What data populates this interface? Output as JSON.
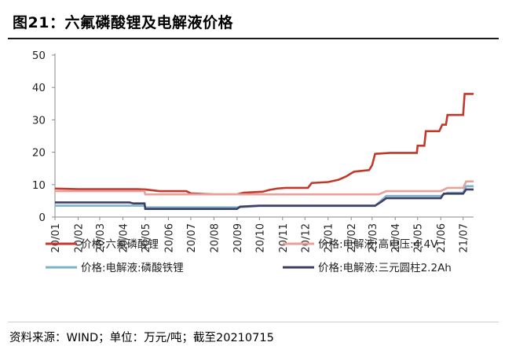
{
  "figure": {
    "title": "图21：六氟磷酸锂及电解液价格",
    "source": "资料来源：WIND；单位：万元/吨；截至20210715"
  },
  "chart_data": {
    "type": "line",
    "title": "",
    "xlabel": "",
    "ylabel": "",
    "ylim": [
      0,
      50
    ],
    "yticks": [
      0,
      10,
      20,
      30,
      40,
      50
    ],
    "xlim": [
      "2020-01-01",
      "2021-07-15"
    ],
    "xticks": [
      "20/01",
      "20/02",
      "20/03",
      "20/04",
      "20/05",
      "20/06",
      "20/07",
      "20/08",
      "20/09",
      "20/10",
      "20/11",
      "20/12",
      "21/01",
      "21/02",
      "21/03",
      "21/04",
      "21/05",
      "21/06",
      "21/07"
    ],
    "grid": "none",
    "legend_position": "bottom",
    "series": [
      {
        "name": "价格:六氟磷酸锂",
        "color": "#c0392b",
        "points": [
          [
            "2020-01-01",
            8.8
          ],
          [
            "2020-02-01",
            8.6
          ],
          [
            "2020-04-20",
            8.6
          ],
          [
            "2020-05-01",
            8.5
          ],
          [
            "2020-05-20",
            8.0
          ],
          [
            "2020-06-25",
            8.0
          ],
          [
            "2020-07-01",
            7.3
          ],
          [
            "2020-08-01",
            7.0
          ],
          [
            "2020-09-01",
            7.0
          ],
          [
            "2020-09-10",
            7.5
          ],
          [
            "2020-10-05",
            7.8
          ],
          [
            "2020-10-15",
            8.4
          ],
          [
            "2020-10-25",
            8.8
          ],
          [
            "2020-11-05",
            9.0
          ],
          [
            "2020-12-05",
            9.0
          ],
          [
            "2020-12-10",
            10.5
          ],
          [
            "2021-01-01",
            10.8
          ],
          [
            "2021-01-15",
            11.5
          ],
          [
            "2021-01-25",
            12.5
          ],
          [
            "2021-02-01",
            13.5
          ],
          [
            "2021-02-05",
            14.0
          ],
          [
            "2021-02-25",
            14.5
          ],
          [
            "2021-03-01",
            16.0
          ],
          [
            "2021-03-05",
            19.5
          ],
          [
            "2021-03-25",
            19.8
          ],
          [
            "2021-04-30",
            19.8
          ],
          [
            "2021-05-01",
            22.0
          ],
          [
            "2021-05-10",
            22.0
          ],
          [
            "2021-05-12",
            26.5
          ],
          [
            "2021-05-30",
            26.5
          ],
          [
            "2021-06-03",
            28.5
          ],
          [
            "2021-06-08",
            28.5
          ],
          [
            "2021-06-10",
            31.5
          ],
          [
            "2021-07-01",
            31.5
          ],
          [
            "2021-07-03",
            38.0
          ],
          [
            "2021-07-15",
            38.0
          ]
        ]
      },
      {
        "name": "价格:电解液:高电压:4.4V",
        "color": "#e8a09a",
        "points": [
          [
            "2020-01-01",
            8.0
          ],
          [
            "2020-04-30",
            8.0
          ],
          [
            "2020-05-01",
            7.0
          ],
          [
            "2020-09-01",
            7.0
          ],
          [
            "2021-03-10",
            7.0
          ],
          [
            "2021-03-20",
            8.0
          ],
          [
            "2021-06-01",
            8.0
          ],
          [
            "2021-06-10",
            9.0
          ],
          [
            "2021-07-01",
            9.0
          ],
          [
            "2021-07-05",
            11.0
          ],
          [
            "2021-07-15",
            11.0
          ]
        ]
      },
      {
        "name": "价格:电解液:磷酸铁锂",
        "color": "#7fb3c8",
        "points": [
          [
            "2020-01-01",
            3.5
          ],
          [
            "2020-04-30",
            3.5
          ],
          [
            "2020-05-01",
            3.0
          ],
          [
            "2020-09-01",
            3.0
          ],
          [
            "2020-10-01",
            3.4
          ],
          [
            "2021-03-05",
            3.4
          ],
          [
            "2021-03-15",
            5.5
          ],
          [
            "2021-03-20",
            6.5
          ],
          [
            "2021-06-01",
            6.5
          ],
          [
            "2021-06-10",
            7.5
          ],
          [
            "2021-07-01",
            7.5
          ],
          [
            "2021-07-05",
            9.5
          ],
          [
            "2021-07-15",
            9.5
          ]
        ]
      },
      {
        "name": "价格:电解液:三元圆柱2.2Ah",
        "color": "#3f3f66",
        "points": [
          [
            "2020-01-01",
            4.5
          ],
          [
            "2020-04-10",
            4.5
          ],
          [
            "2020-04-15",
            4.2
          ],
          [
            "2020-04-30",
            4.2
          ],
          [
            "2020-05-01",
            2.5
          ],
          [
            "2020-09-01",
            2.5
          ],
          [
            "2020-09-05",
            3.2
          ],
          [
            "2020-10-01",
            3.5
          ],
          [
            "2021-03-05",
            3.5
          ],
          [
            "2021-03-12",
            4.5
          ],
          [
            "2021-03-20",
            5.8
          ],
          [
            "2021-06-01",
            5.8
          ],
          [
            "2021-06-05",
            7.2
          ],
          [
            "2021-07-01",
            7.2
          ],
          [
            "2021-07-05",
            8.5
          ],
          [
            "2021-07-15",
            8.5
          ]
        ]
      }
    ]
  }
}
